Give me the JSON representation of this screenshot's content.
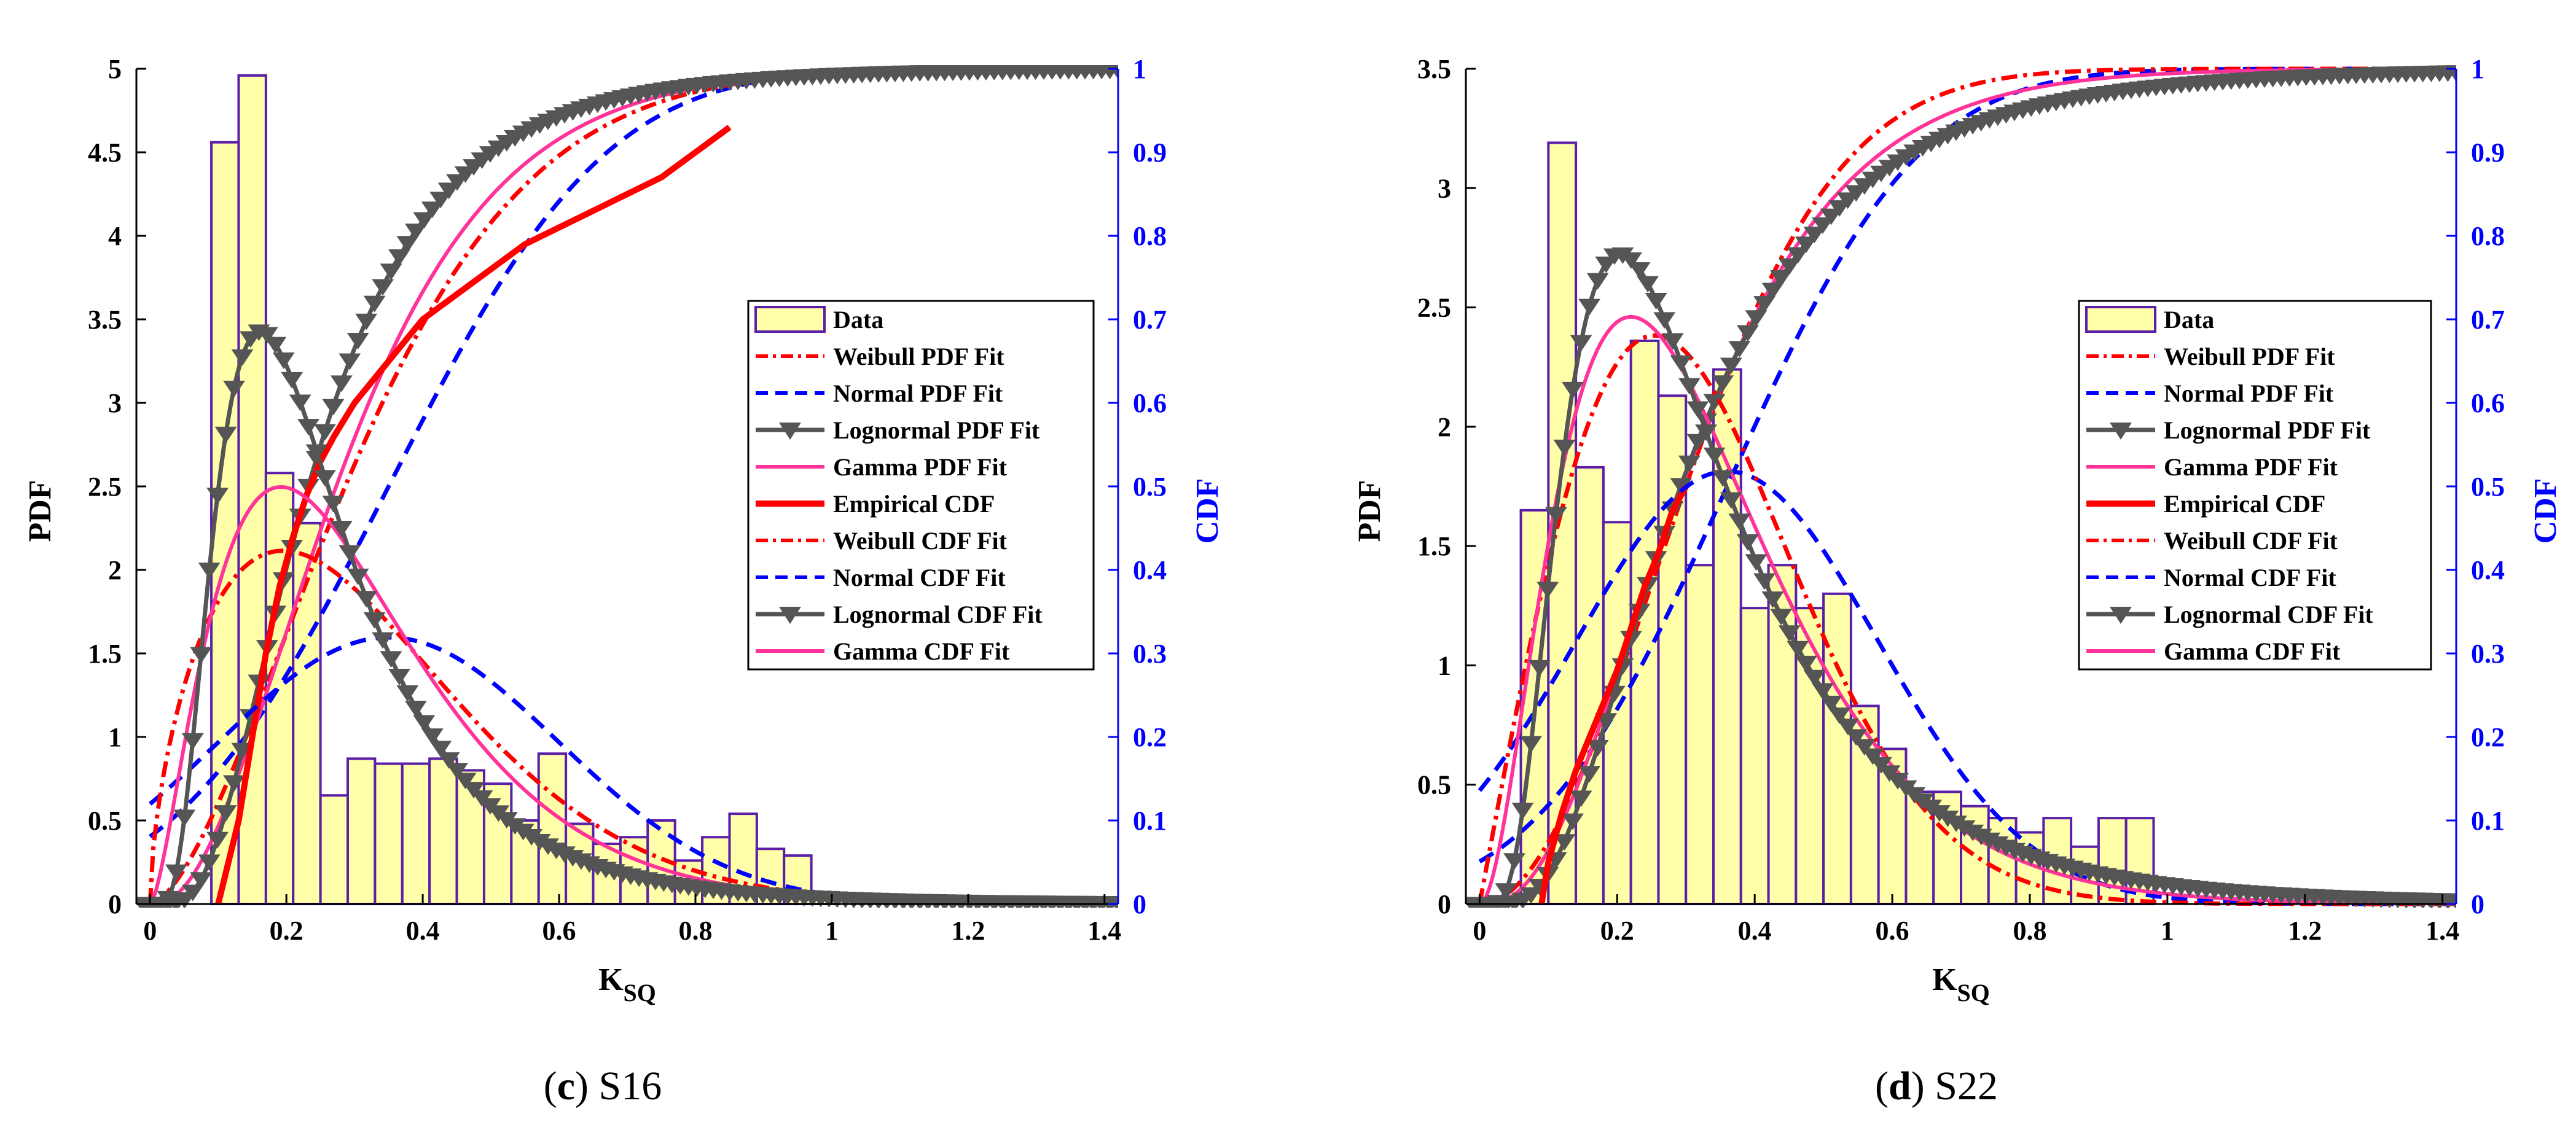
{
  "chart_data": [
    {
      "type": "histogram+line",
      "panel_letter": "c",
      "panel_name": "S16",
      "xlabel": "K",
      "xlabel_sub": "SQ",
      "ylabel_left": "PDF",
      "ylabel_right": "CDF",
      "xlim": [
        -0.02,
        1.42
      ],
      "ylim_left": [
        0,
        5
      ],
      "ylim_right": [
        0,
        1
      ],
      "xticks": [
        "0",
        "0.2",
        "0.4",
        "0.6",
        "0.8",
        "1",
        "1.2",
        "1.4"
      ],
      "xtick_values": [
        0,
        0.2,
        0.4,
        0.6,
        0.8,
        1,
        1.2,
        1.4
      ],
      "yticks_left": [
        "0",
        "0.5",
        "1",
        "1.5",
        "2",
        "2.5",
        "3",
        "3.5",
        "4",
        "4.5",
        "5"
      ],
      "yticks_left_values": [
        0,
        0.5,
        1,
        1.5,
        2,
        2.5,
        3,
        3.5,
        4,
        4.5,
        5
      ],
      "yticks_right": [
        "0",
        "0.1",
        "0.2",
        "0.3",
        "0.4",
        "0.5",
        "0.6",
        "0.7",
        "0.8",
        "0.9",
        "1"
      ],
      "yticks_right_values": [
        0,
        0.1,
        0.2,
        0.3,
        0.4,
        0.5,
        0.6,
        0.7,
        0.8,
        0.9,
        1
      ],
      "histogram": {
        "bin_start": 0.09,
        "bin_width": 0.04,
        "values": [
          4.56,
          4.96,
          2.58,
          2.28,
          0.65,
          0.87,
          0.84,
          0.84,
          0.87,
          0.8,
          0.72,
          0.5,
          0.9,
          0.48,
          0.36,
          0.4,
          0.5,
          0.26,
          0.4,
          0.54,
          0.33,
          0.29,
          0.06
        ]
      },
      "empirical_cdf": {
        "x": [
          0.1,
          0.115,
          0.13,
          0.15,
          0.17,
          0.19,
          0.21,
          0.23,
          0.25,
          0.27,
          0.3,
          0.33,
          0.36,
          0.4,
          0.45,
          0.5,
          0.55,
          0.6,
          0.65,
          0.7,
          0.75,
          0.8,
          0.85
        ],
        "y": [
          0,
          0.05,
          0.1,
          0.2,
          0.3,
          0.38,
          0.44,
          0.49,
          0.53,
          0.56,
          0.6,
          0.63,
          0.66,
          0.7,
          0.73,
          0.76,
          0.79,
          0.81,
          0.83,
          0.85,
          0.87,
          0.9,
          0.93
        ]
      },
      "params": {
        "weibull": {
          "k": 1.6,
          "lambda": 0.36
        },
        "normal": {
          "mu": 0.35,
          "sigma": 0.25
        },
        "lognormal": {
          "mu": -1.46,
          "sigma": 0.6
        },
        "gamma": {
          "shape": 2.6,
          "scale": 0.12
        }
      },
      "legend": {
        "data": "Data",
        "weibull_pdf": "Weibull PDF Fit",
        "normal_pdf": "Normal PDF Fit",
        "lognormal_pdf": "Lognormal PDF Fit",
        "gamma_pdf": "Gamma PDF Fit",
        "empirical_cdf": "Empirical CDF",
        "weibull_cdf": "Weibull CDF Fit",
        "normal_cdf": "Normal CDF Fit",
        "lognormal_cdf": "Lognormal CDF Fit",
        "gamma_cdf": "Gamma CDF Fit"
      },
      "legend_position": "center-right"
    },
    {
      "type": "histogram+line",
      "panel_letter": "d",
      "panel_name": "S22",
      "xlabel": "K",
      "xlabel_sub": "SQ",
      "ylabel_left": "PDF",
      "ylabel_right": "CDF",
      "xlim": [
        -0.02,
        1.42
      ],
      "ylim_left": [
        0,
        3.5
      ],
      "ylim_right": [
        0,
        1
      ],
      "xticks": [
        "0",
        "0.2",
        "0.4",
        "0.6",
        "0.8",
        "1",
        "1.2",
        "1.4"
      ],
      "xtick_values": [
        0,
        0.2,
        0.4,
        0.6,
        0.8,
        1,
        1.2,
        1.4
      ],
      "yticks_left": [
        "0",
        "0.5",
        "1",
        "1.5",
        "2",
        "2.5",
        "3",
        "3.5"
      ],
      "yticks_left_values": [
        0,
        0.5,
        1,
        1.5,
        2,
        2.5,
        3,
        3.5
      ],
      "yticks_right": [
        "0",
        "0.1",
        "0.2",
        "0.3",
        "0.4",
        "0.5",
        "0.6",
        "0.7",
        "0.8",
        "0.9",
        "1"
      ],
      "yticks_right_values": [
        0,
        0.1,
        0.2,
        0.3,
        0.4,
        0.5,
        0.6,
        0.7,
        0.8,
        0.9,
        1
      ],
      "histogram": {
        "bin_start": 0.06,
        "bin_width": 0.04,
        "values": [
          1.65,
          3.19,
          1.83,
          1.6,
          2.36,
          2.13,
          1.42,
          2.24,
          1.24,
          1.42,
          1.24,
          1.3,
          0.83,
          0.65,
          0.47,
          0.47,
          0.41,
          0.36,
          0.3,
          0.36,
          0.24,
          0.36,
          0.36
        ]
      },
      "empirical_cdf": {
        "x": [
          0.09,
          0.1,
          0.12,
          0.14,
          0.16,
          0.18,
          0.2,
          0.22,
          0.24,
          0.26,
          0.28,
          0.3
        ],
        "y": [
          0,
          0.05,
          0.11,
          0.16,
          0.2,
          0.24,
          0.28,
          0.33,
          0.38,
          0.42,
          0.47,
          0.5
        ]
      },
      "params": {
        "weibull": {
          "k": 2.0,
          "lambda": 0.36
        },
        "normal": {
          "mu": 0.36,
          "sigma": 0.22
        },
        "lognormal": {
          "mu": -1.23,
          "sigma": 0.6
        },
        "gamma": {
          "shape": 3.0,
          "scale": 0.11
        }
      },
      "legend": {
        "data": "Data",
        "weibull_pdf": "Weibull PDF Fit",
        "normal_pdf": "Normal PDF Fit",
        "lognormal_pdf": "Lognormal PDF Fit",
        "gamma_pdf": "Gamma PDF Fit",
        "empirical_cdf": "Empirical CDF",
        "weibull_cdf": "Weibull CDF Fit",
        "normal_cdf": "Normal CDF Fit",
        "lognormal_cdf": "Lognormal CDF Fit",
        "gamma_cdf": "Gamma CDF Fit"
      },
      "legend_position": "center-right"
    }
  ],
  "colors": {
    "histogram_fill": "#ffffaa",
    "histogram_edge": "#5a1ea8",
    "weibull": "#ff0000",
    "normal": "#0000ff",
    "lognormal": "#555555",
    "gamma": "#ff3399",
    "empirical": "#ff0000",
    "right_axis": "#0000ff"
  }
}
